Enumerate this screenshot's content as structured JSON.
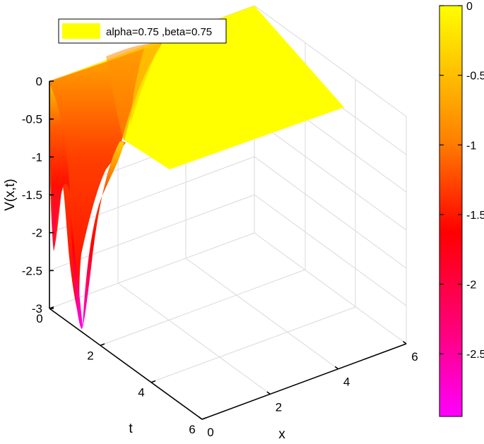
{
  "chart_data": {
    "type": "surface3d",
    "title": "",
    "xlabel": "x",
    "ylabel": "t",
    "zlabel": "V(x,t)",
    "xlim": [
      0,
      6
    ],
    "ylim": [
      0,
      6
    ],
    "zlim": [
      -3,
      0
    ],
    "x_ticks": [
      "0",
      "2",
      "4",
      "6"
    ],
    "y_ticks": [
      "0",
      "2",
      "4",
      "6"
    ],
    "z_ticks": [
      "0",
      "-0.5",
      "-1",
      "-1.5",
      "-2",
      "-2.5",
      "-3"
    ],
    "grid": true,
    "legend": {
      "position": "top-left",
      "entries": [
        "alpha=0.75 ,beta=0.75"
      ]
    },
    "colorbar": {
      "position": "right",
      "colormap": "spring",
      "ticks": [
        "0",
        "-0.5",
        "-1",
        "-1.5",
        "-2",
        "-2.5"
      ],
      "range": [
        -2.95,
        0
      ]
    },
    "surface_description_values": {
      "flat_level": 0,
      "surface_x_range": [
        0,
        6
      ],
      "surface_t_range": [
        0,
        2.3
      ],
      "deep_trough": {
        "x": 0.25,
        "t": 1.4,
        "v": -2.9
      },
      "shallow_trough": {
        "x": 0,
        "t": 0.4,
        "v": -2.3
      }
    }
  },
  "colors": {
    "max": "#ffff00",
    "min": "#ff00ff",
    "mid": "#ff0000",
    "grid": "#d9d9d9",
    "axis": "#000000"
  }
}
